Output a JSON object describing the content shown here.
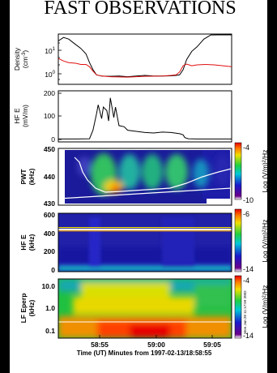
{
  "title": "FAST OBSERVATIONS",
  "xaxis": {
    "label": "Time (UT) Minutes from 1997-02-13/18:58:55",
    "ticks": [
      "58:55",
      "59:00",
      "59:05"
    ]
  },
  "stamp": "Mon Jan 28 11:17:59 2002",
  "chart_data": [
    {
      "type": "line",
      "ylabel": "Density (cm-3)",
      "yscale": "log",
      "ticks": [
        "10^1",
        "10^0"
      ],
      "series": [
        {
          "color": "#000000",
          "x": [
            0.0,
            0.03,
            0.06,
            0.09,
            0.13,
            0.16,
            0.18,
            0.2,
            0.22,
            0.25,
            0.3,
            0.35,
            0.4,
            0.45,
            0.5,
            0.55,
            0.6,
            0.65,
            0.68,
            0.7,
            0.72,
            0.74,
            0.77,
            0.8,
            0.84,
            0.88,
            0.92,
            0.96,
            1.0
          ],
          "y": [
            25,
            35,
            30,
            20,
            12,
            7,
            3,
            1.5,
            0.9,
            0.8,
            0.78,
            0.8,
            0.75,
            0.8,
            0.85,
            0.8,
            0.8,
            0.82,
            0.85,
            0.9,
            1.5,
            4,
            9,
            14,
            30,
            45,
            55,
            60,
            65
          ]
        },
        {
          "color": "#e01010",
          "x": [
            0.0,
            0.03,
            0.06,
            0.1,
            0.13,
            0.16,
            0.18,
            0.2,
            0.22,
            0.25,
            0.3,
            0.4,
            0.5,
            0.6,
            0.65,
            0.68,
            0.7,
            0.72,
            0.74,
            0.77,
            0.8,
            0.85,
            0.9,
            0.95,
            1.0
          ],
          "y": [
            4.5,
            3.5,
            3,
            2.8,
            2.5,
            2.5,
            2,
            1.3,
            0.9,
            0.8,
            0.75,
            0.72,
            0.78,
            0.8,
            0.85,
            0.9,
            1.2,
            2.2,
            2.6,
            2.2,
            2.4,
            2.5,
            2.4,
            2.2,
            2.0
          ]
        }
      ]
    },
    {
      "type": "line",
      "ylabel": "HF E (mV/m)",
      "ylim": [
        0,
        200
      ],
      "ticks": [
        "200",
        "100",
        "0"
      ],
      "series": [
        {
          "color": "#000000",
          "x": [
            0.0,
            0.1,
            0.18,
            0.2,
            0.22,
            0.23,
            0.25,
            0.26,
            0.28,
            0.29,
            0.3,
            0.32,
            0.33,
            0.35,
            0.38,
            0.4,
            0.45,
            0.5,
            0.55,
            0.6,
            0.65,
            0.7,
            0.72,
            0.73,
            0.75,
            0.8,
            0.9,
            1.0
          ],
          "y": [
            2,
            2,
            3,
            40,
            110,
            150,
            90,
            140,
            125,
            80,
            180,
            95,
            140,
            60,
            55,
            40,
            35,
            30,
            28,
            32,
            30,
            25,
            20,
            8,
            3,
            2,
            2,
            2
          ]
        }
      ]
    },
    {
      "type": "heatmap",
      "ylabel": "PWT (kHz)",
      "ylim": [
        430,
        450
      ],
      "ticks": [
        "450",
        "440",
        "430"
      ],
      "colorbar": {
        "label": "Log (V/m)²/Hz",
        "max": "-4",
        "min": "-10"
      }
    },
    {
      "type": "heatmap",
      "ylabel": "HF E (kHz)",
      "ylim": [
        0,
        600
      ],
      "ticks": [
        "600",
        "400",
        "200",
        "0"
      ],
      "colorbar": {
        "label": "Log (V/m)²/Hz",
        "max": "-6",
        "min": "-14"
      }
    },
    {
      "type": "heatmap",
      "ylabel": "LF Eperp (kHz)",
      "yscale": "log",
      "ticks": [
        "10.0",
        "1.0",
        "0.1"
      ],
      "colorbar": {
        "label": "Log (V/m)²/Hz",
        "max": "-4",
        "min": "-14"
      }
    }
  ]
}
